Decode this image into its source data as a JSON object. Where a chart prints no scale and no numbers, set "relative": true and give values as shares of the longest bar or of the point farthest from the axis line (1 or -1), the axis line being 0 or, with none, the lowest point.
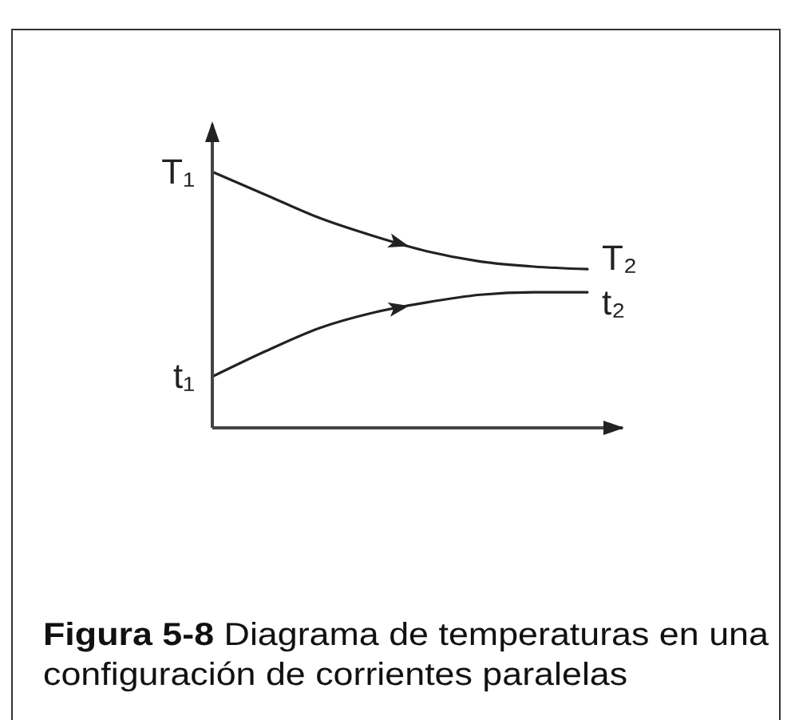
{
  "chart_data": {
    "type": "line",
    "relative": true,
    "categories": [
      null,
      null,
      null,
      null,
      null,
      null,
      null,
      null
    ],
    "series": [
      {
        "color": "#222222",
        "values": [
          1,
          0.91,
          0.82,
          0.75,
          0.69,
          0.65,
          0.63,
          0.62
        ]
      },
      {
        "color": "#222222",
        "values": [
          0.2,
          0.3,
          0.39,
          0.45,
          0.49,
          0.52,
          0.53,
          0.53
        ]
      }
    ],
    "marker": "none",
    "line_style": "solid",
    "annotations": [
      "T₁",
      "T₂",
      "t₁",
      "t₂",
      "Figura 5-8 Diagrama de temperaturas en una configuración de corrientes paralelas"
    ]
  }
}
